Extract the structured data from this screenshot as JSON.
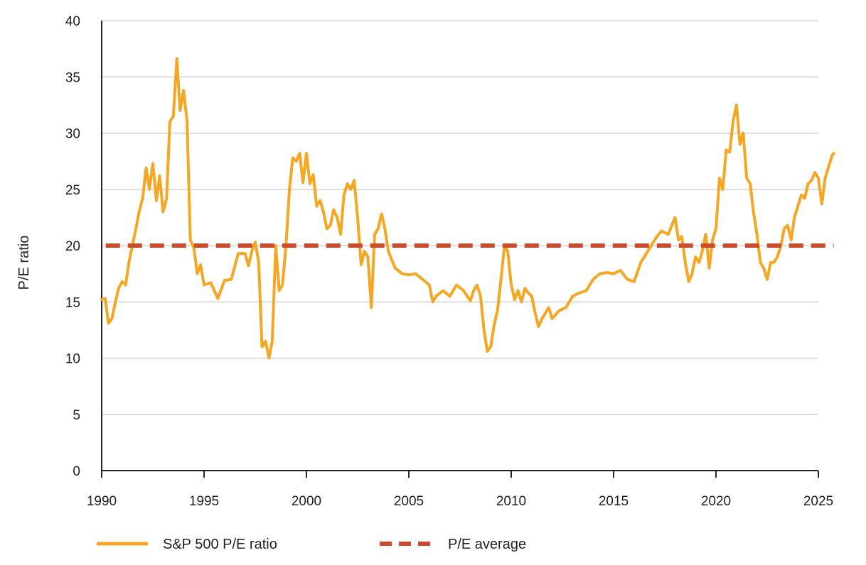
{
  "chart_data": {
    "type": "line",
    "title": "",
    "xlabel": "",
    "ylabel": "P/E ratio",
    "xlim": [
      1990,
      2025.75
    ],
    "ylim": [
      0,
      40
    ],
    "x_ticks": [
      1990,
      1995,
      2000,
      2005,
      2010,
      2015,
      2020,
      2025
    ],
    "x_tick_labels": [
      "1990",
      "1995",
      "2000",
      "2005",
      "2010",
      "2015",
      "2020",
      "2025"
    ],
    "y_ticks": [
      0,
      5,
      10,
      15,
      20,
      25,
      30,
      35,
      40
    ],
    "y_tick_labels": [
      "0",
      "5",
      "10",
      "15",
      "20",
      "25",
      "30",
      "35",
      "40"
    ],
    "grid": "horizontal",
    "legend_position": "bottom",
    "colors": {
      "pe_ratio": "#F5A623",
      "pe_average": "#D2492A",
      "grid": "#BBBBBB",
      "axis": "#222222"
    },
    "series": [
      {
        "name": "S&P 500 P/E ratio",
        "style": "solid",
        "x": [
          1990.0,
          1990.17,
          1990.33,
          1990.5,
          1990.67,
          1990.83,
          1991.0,
          1991.17,
          1991.33,
          1991.5,
          1991.67,
          1991.83,
          1992.0,
          1992.17,
          1992.33,
          1992.5,
          1992.67,
          1992.83,
          1993.0,
          1993.17,
          1993.33,
          1993.5,
          1993.67,
          1993.83,
          1994.0,
          1994.17,
          1994.33,
          1994.5,
          1994.67,
          1994.83,
          1995.0,
          1995.33,
          1995.67,
          1996.0,
          1996.33,
          1996.67,
          1997.0,
          1997.17,
          1997.33,
          1997.5,
          1997.67,
          1997.83,
          1998.0,
          1998.17,
          1998.33,
          1998.5,
          1998.67,
          1998.83,
          1999.0,
          1999.17,
          1999.33,
          1999.5,
          1999.67,
          1999.83,
          2000.0,
          2000.17,
          2000.33,
          2000.5,
          2000.67,
          2000.83,
          2001.0,
          2001.17,
          2001.33,
          2001.5,
          2001.67,
          2001.83,
          2002.0,
          2002.17,
          2002.33,
          2002.5,
          2002.67,
          2002.83,
          2003.0,
          2003.17,
          2003.33,
          2003.5,
          2003.67,
          2003.83,
          2004.0,
          2004.33,
          2004.67,
          2005.0,
          2005.33,
          2005.67,
          2006.0,
          2006.17,
          2006.33,
          2006.67,
          2007.0,
          2007.33,
          2007.67,
          2008.0,
          2008.17,
          2008.33,
          2008.5,
          2008.67,
          2008.83,
          2009.0,
          2009.17,
          2009.33,
          2009.5,
          2009.67,
          2009.83,
          2010.0,
          2010.17,
          2010.33,
          2010.5,
          2010.67,
          2010.83,
          2011.0,
          2011.17,
          2011.33,
          2011.5,
          2011.67,
          2011.83,
          2012.0,
          2012.33,
          2012.67,
          2013.0,
          2013.33,
          2013.67,
          2014.0,
          2014.33,
          2014.67,
          2015.0,
          2015.33,
          2015.67,
          2016.0,
          2016.33,
          2016.67,
          2017.0,
          2017.33,
          2017.67,
          2018.0,
          2018.17,
          2018.33,
          2018.5,
          2018.67,
          2018.83,
          2019.0,
          2019.17,
          2019.33,
          2019.5,
          2019.67,
          2019.83,
          2020.0,
          2020.17,
          2020.33,
          2020.5,
          2020.67,
          2020.83,
          2021.0,
          2021.17,
          2021.33,
          2021.5,
          2021.67,
          2021.83,
          2022.0,
          2022.17,
          2022.33,
          2022.5,
          2022.67,
          2022.83,
          2023.0,
          2023.17,
          2023.33,
          2023.5,
          2023.67,
          2023.83,
          2024.0,
          2024.17,
          2024.33,
          2024.5,
          2024.67,
          2024.83,
          2025.0,
          2025.17,
          2025.33,
          2025.5,
          2025.67,
          2025.75
        ],
        "y": [
          15.2,
          15.3,
          13.1,
          13.5,
          15.0,
          16.2,
          16.8,
          16.5,
          18.5,
          20.0,
          21.5,
          23.0,
          24.2,
          26.9,
          25.0,
          27.3,
          24.0,
          26.2,
          23.0,
          24.2,
          31.0,
          31.5,
          36.6,
          32.0,
          33.8,
          31.0,
          20.5,
          19.8,
          17.5,
          18.3,
          16.5,
          16.7,
          15.3,
          16.9,
          17.0,
          19.3,
          19.3,
          18.2,
          19.5,
          20.3,
          18.5,
          11.0,
          11.5,
          10.0,
          11.5,
          20.0,
          16.0,
          16.5,
          20.0,
          25.0,
          27.8,
          27.5,
          28.2,
          25.6,
          28.2,
          25.5,
          26.3,
          23.5,
          24.0,
          23.0,
          21.5,
          21.8,
          23.2,
          22.5,
          21.0,
          24.5,
          25.5,
          25.0,
          25.8,
          22.5,
          18.3,
          19.5,
          19.0,
          14.5,
          21.0,
          21.5,
          22.8,
          21.5,
          19.5,
          18.0,
          17.5,
          17.4,
          17.5,
          17.0,
          16.5,
          15.0,
          15.5,
          16.0,
          15.5,
          16.5,
          16.0,
          15.1,
          16.0,
          16.5,
          15.5,
          12.5,
          10.6,
          11.0,
          13.0,
          14.2,
          17.0,
          20.0,
          19.5,
          16.5,
          15.2,
          16.0,
          15.0,
          16.2,
          15.8,
          15.5,
          14.0,
          12.8,
          13.5,
          14.0,
          14.5,
          13.5,
          14.2,
          14.5,
          15.5,
          15.8,
          16.0,
          17.0,
          17.5,
          17.6,
          17.5,
          17.8,
          17.0,
          16.8,
          18.5,
          19.5,
          20.5,
          21.3,
          21.0,
          22.5,
          20.5,
          20.8,
          18.5,
          16.8,
          17.5,
          19.0,
          18.5,
          19.5,
          21.0,
          18.0,
          20.5,
          21.5,
          26.0,
          25.0,
          28.5,
          28.3,
          31.0,
          32.5,
          29.0,
          30.0,
          26.0,
          25.5,
          23.0,
          21.0,
          18.5,
          18.0,
          17.0,
          18.5,
          18.5,
          19.0,
          20.0,
          21.5,
          21.8,
          20.5,
          22.5,
          23.5,
          24.5,
          24.2,
          25.5,
          25.8,
          26.5,
          26.0,
          23.7,
          26.0,
          27.0,
          28.0,
          28.2
        ]
      },
      {
        "name": "P/E average",
        "style": "dashed",
        "x": [
          1990.2,
          2025.75
        ],
        "y": [
          20.0,
          20.0
        ]
      }
    ]
  }
}
